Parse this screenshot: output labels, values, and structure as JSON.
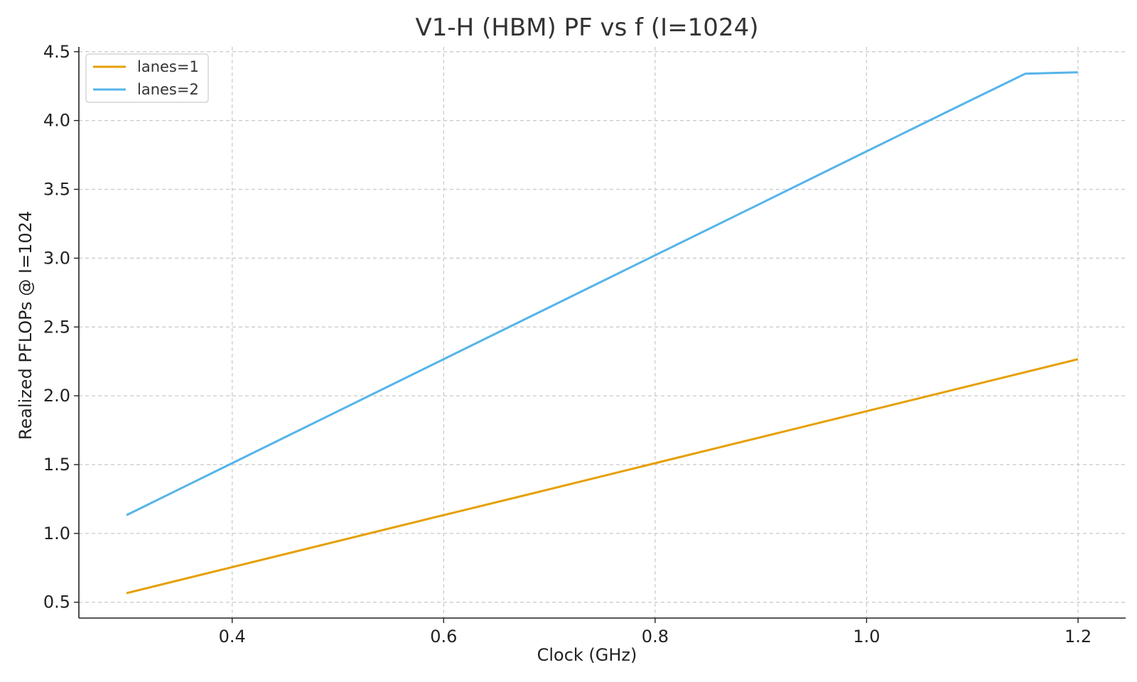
{
  "chart_data": {
    "type": "line",
    "title": "V1-H (HBM) PF vs f (I=1024)",
    "xlabel": "Clock (GHz)",
    "ylabel": "Realized PFLOPs @ I=1024",
    "xlim": [
      0.255,
      1.245
    ],
    "ylim": [
      0.385,
      4.535
    ],
    "xticks": [
      0.4,
      0.6,
      0.8,
      1.0,
      1.2
    ],
    "xtick_labels": [
      "0.4",
      "0.6",
      "0.8",
      "1.0",
      "1.2"
    ],
    "yticks": [
      0.5,
      1.0,
      1.5,
      2.0,
      2.5,
      3.0,
      3.5,
      4.0,
      4.5
    ],
    "ytick_labels": [
      "0.5",
      "1.0",
      "1.5",
      "2.0",
      "2.5",
      "3.0",
      "3.5",
      "4.0",
      "4.5"
    ],
    "grid": true,
    "legend_position": "top-left",
    "series": [
      {
        "name": "lanes=1",
        "color": "#E69F00",
        "x": [
          0.3,
          0.4,
          0.5,
          0.6,
          0.7,
          0.8,
          0.9,
          1.0,
          1.1,
          1.2
        ],
        "y": [
          0.566,
          0.755,
          0.944,
          1.133,
          1.321,
          1.51,
          1.699,
          1.888,
          2.077,
          2.266
        ]
      },
      {
        "name": "lanes=2",
        "color": "#56B4E9",
        "x": [
          0.3,
          0.4,
          0.5,
          0.6,
          0.7,
          0.8,
          0.9,
          1.0,
          1.1,
          1.15,
          1.2
        ],
        "y": [
          1.133,
          1.51,
          1.888,
          2.266,
          2.643,
          3.021,
          3.398,
          3.776,
          4.153,
          4.34,
          4.35
        ]
      }
    ]
  }
}
